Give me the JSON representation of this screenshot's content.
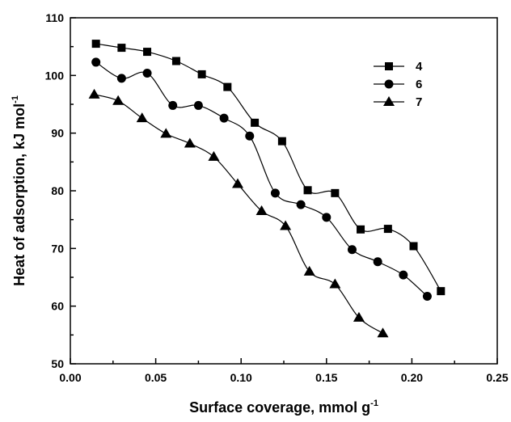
{
  "chart_data": {
    "type": "line",
    "title": "",
    "xlabel": "Surface coverage, mmol g",
    "xlabel_sup": "-1",
    "ylabel": "Heat of adsorption, kJ mol",
    "ylabel_sup": "-1",
    "xlim": [
      0.0,
      0.25
    ],
    "ylim": [
      50,
      110
    ],
    "xticks": [
      0.0,
      0.05,
      0.1,
      0.15,
      0.2,
      0.25
    ],
    "xtick_labels": [
      "0.00",
      "0.05",
      "0.10",
      "0.15",
      "0.20",
      "0.25"
    ],
    "yticks": [
      50,
      60,
      70,
      80,
      90,
      100,
      110
    ],
    "ytick_labels": [
      "50",
      "60",
      "70",
      "80",
      "90",
      "100",
      "110"
    ],
    "grid": false,
    "legend_position": "top-right",
    "series": [
      {
        "name": "4",
        "marker": "square",
        "x": [
          0.015,
          0.03,
          0.045,
          0.062,
          0.077,
          0.092,
          0.108,
          0.124,
          0.139,
          0.155,
          0.17,
          0.186,
          0.201,
          0.217
        ],
        "y": [
          105.5,
          104.8,
          104.1,
          102.5,
          100.2,
          98.0,
          91.8,
          88.6,
          80.1,
          79.6,
          73.3,
          73.4,
          70.4,
          62.6
        ]
      },
      {
        "name": "6",
        "marker": "circle",
        "x": [
          0.015,
          0.03,
          0.045,
          0.06,
          0.075,
          0.09,
          0.105,
          0.12,
          0.135,
          0.15,
          0.165,
          0.18,
          0.195,
          0.209
        ],
        "y": [
          102.3,
          99.5,
          100.4,
          94.8,
          94.8,
          92.6,
          89.5,
          79.6,
          77.6,
          75.4,
          69.8,
          67.7,
          65.4,
          61.7
        ]
      },
      {
        "name": "7",
        "marker": "triangle",
        "x": [
          0.014,
          0.028,
          0.042,
          0.056,
          0.07,
          0.084,
          0.098,
          0.112,
          0.126,
          0.14,
          0.155,
          0.169,
          0.183
        ],
        "y": [
          96.7,
          95.6,
          92.6,
          89.9,
          88.2,
          85.9,
          81.2,
          76.5,
          73.9,
          66.0,
          63.8,
          58.0,
          55.3
        ]
      }
    ]
  }
}
